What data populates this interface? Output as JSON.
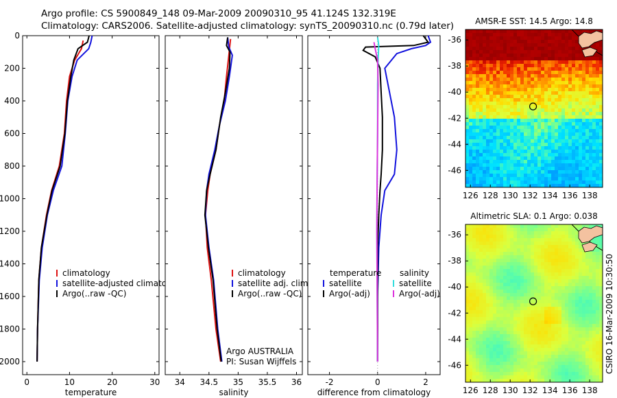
{
  "header": {
    "title_line1": "Argo profile: CS 5900849_148 09-Mar-2009 20090310_95 41.124S 132.319E",
    "title_line2": "Climatology: CARS2006. Satellite-adjusted climatology: synTS_20090310.nc (0.79d later)"
  },
  "side_label": "CSIRO 16-Mar-2009 10:30:50",
  "colors": {
    "climatology": "#dd1111",
    "satellite": "#1111dd",
    "argo": "#000000",
    "sat_salinity": "#33dddd",
    "argo_salinity": "#dd33dd"
  },
  "chart_data": [
    {
      "type": "line",
      "id": "temperature",
      "xlabel": "temperature",
      "xlim": [
        -1,
        31
      ],
      "ylim": [
        2080,
        0
      ],
      "xticks": [
        0,
        10,
        20,
        30
      ],
      "yticks": [
        0,
        200,
        400,
        600,
        800,
        1000,
        1200,
        1400,
        1600,
        1800,
        2000
      ],
      "legend": [
        "climatology",
        "satellite-adjusted climatology",
        "Argo(..raw -QC)"
      ],
      "series": [
        {
          "name": "climatology",
          "color": "#dd1111",
          "points": [
            [
              13.2,
              30
            ],
            [
              12.8,
              80
            ],
            [
              11.2,
              150
            ],
            [
              10.0,
              250
            ],
            [
              9.3,
              400
            ],
            [
              8.8,
              600
            ],
            [
              7.6,
              800
            ],
            [
              5.8,
              950
            ],
            [
              4.6,
              1100
            ],
            [
              3.4,
              1300
            ],
            [
              2.8,
              1500
            ],
            [
              2.5,
              1800
            ],
            [
              2.4,
              2000
            ]
          ]
        },
        {
          "name": "satellite-adjusted climatology",
          "color": "#1111dd",
          "points": [
            [
              15.3,
              0
            ],
            [
              15.0,
              40
            ],
            [
              14.5,
              80
            ],
            [
              11.8,
              150
            ],
            [
              10.6,
              250
            ],
            [
              9.6,
              400
            ],
            [
              9.0,
              600
            ],
            [
              8.2,
              800
            ],
            [
              6.2,
              950
            ],
            [
              4.8,
              1100
            ],
            [
              3.6,
              1300
            ],
            [
              2.9,
              1500
            ],
            [
              2.5,
              1800
            ],
            [
              2.4,
              2000
            ]
          ]
        },
        {
          "name": "Argo(..raw -QC)",
          "color": "#000000",
          "points": [
            [
              14.6,
              0
            ],
            [
              14.2,
              40
            ],
            [
              12.0,
              80
            ],
            [
              11.0,
              150
            ],
            [
              10.3,
              250
            ],
            [
              9.5,
              400
            ],
            [
              8.9,
              600
            ],
            [
              7.8,
              800
            ],
            [
              5.9,
              950
            ],
            [
              4.7,
              1100
            ],
            [
              3.4,
              1300
            ],
            [
              2.8,
              1500
            ],
            [
              2.5,
              1800
            ],
            [
              2.4,
              2000
            ]
          ]
        }
      ]
    },
    {
      "type": "line",
      "id": "salinity",
      "xlabel": "salinity",
      "xlim": [
        33.75,
        36.1
      ],
      "ylim": [
        2080,
        0
      ],
      "xticks": [
        34,
        34.5,
        35,
        35.5,
        36
      ],
      "yticks": [
        0,
        200,
        400,
        600,
        800,
        1000,
        1200,
        1400,
        1600,
        1800,
        2000
      ],
      "legend": [
        "climatology",
        "satellite adj. clim.",
        "Argo(..raw -QC)"
      ],
      "annotation": [
        "Argo AUSTRALIA",
        "PI: Susan Wijffels"
      ],
      "series": [
        {
          "name": "climatology",
          "color": "#dd1111",
          "points": [
            [
              34.87,
              20
            ],
            [
              34.84,
              120
            ],
            [
              34.8,
              250
            ],
            [
              34.76,
              400
            ],
            [
              34.68,
              550
            ],
            [
              34.62,
              700
            ],
            [
              34.52,
              850
            ],
            [
              34.48,
              950
            ],
            [
              34.44,
              1100
            ],
            [
              34.47,
              1300
            ],
            [
              34.54,
              1500
            ],
            [
              34.62,
              1800
            ],
            [
              34.7,
              2000
            ]
          ]
        },
        {
          "name": "satellite adj. clim.",
          "color": "#1111dd",
          "points": [
            [
              34.82,
              10
            ],
            [
              34.84,
              70
            ],
            [
              34.9,
              120
            ],
            [
              34.85,
              250
            ],
            [
              34.78,
              400
            ],
            [
              34.68,
              550
            ],
            [
              34.6,
              700
            ],
            [
              34.5,
              850
            ],
            [
              34.46,
              950
            ],
            [
              34.44,
              1100
            ],
            [
              34.5,
              1300
            ],
            [
              34.58,
              1500
            ],
            [
              34.65,
              1800
            ],
            [
              34.72,
              2000
            ]
          ]
        },
        {
          "name": "Argo(..raw -QC)",
          "color": "#000000",
          "points": [
            [
              34.82,
              10
            ],
            [
              34.8,
              60
            ],
            [
              34.86,
              100
            ],
            [
              34.85,
              200
            ],
            [
              34.78,
              350
            ],
            [
              34.7,
              500
            ],
            [
              34.62,
              700
            ],
            [
              34.52,
              850
            ],
            [
              34.46,
              950
            ],
            [
              34.43,
              1100
            ],
            [
              34.49,
              1300
            ],
            [
              34.57,
              1500
            ],
            [
              34.64,
              1800
            ],
            [
              34.71,
              2000
            ]
          ]
        }
      ]
    },
    {
      "type": "line",
      "id": "difference",
      "xlabel": "difference from climatology",
      "xlim": [
        -2.9,
        2.6
      ],
      "ylim": [
        2080,
        0
      ],
      "xticks": [
        -2,
        0,
        2
      ],
      "yticks": [
        0,
        200,
        400,
        600,
        800,
        1000,
        1200,
        1400,
        1600,
        1800,
        2000
      ],
      "legend_titles": [
        "temperature",
        "salinity"
      ],
      "legend": [
        "satellite",
        "Argo(-adj)",
        "satellite",
        "Argo(-adj)"
      ],
      "series": [
        {
          "name": "temperature satellite",
          "color": "#1111dd",
          "points": [
            [
              2.1,
              0
            ],
            [
              2.2,
              40
            ],
            [
              2.0,
              60
            ],
            [
              1.4,
              80
            ],
            [
              0.8,
              110
            ],
            [
              0.3,
              200
            ],
            [
              0.5,
              350
            ],
            [
              0.7,
              500
            ],
            [
              0.8,
              700
            ],
            [
              0.7,
              850
            ],
            [
              0.3,
              950
            ],
            [
              0.15,
              1100
            ],
            [
              0.05,
              1300
            ],
            [
              0.0,
              1600
            ],
            [
              0.0,
              2000
            ]
          ]
        },
        {
          "name": "temperature Argo(-adj)",
          "color": "#000000",
          "points": [
            [
              1.9,
              0
            ],
            [
              2.1,
              40
            ],
            [
              1.5,
              60
            ],
            [
              -0.5,
              70
            ],
            [
              -0.6,
              90
            ],
            [
              -0.1,
              130
            ],
            [
              0.1,
              200
            ],
            [
              0.15,
              350
            ],
            [
              0.2,
              500
            ],
            [
              0.2,
              700
            ],
            [
              0.15,
              850
            ],
            [
              0.1,
              950
            ],
            [
              0.05,
              1100
            ],
            [
              0.0,
              1300
            ],
            [
              0.0,
              1600
            ],
            [
              0.0,
              2000
            ]
          ]
        },
        {
          "name": "salinity satellite",
          "color": "#33dddd",
          "points": [
            [
              0.0,
              10
            ],
            [
              0.05,
              60
            ],
            [
              0.02,
              150
            ],
            [
              0.0,
              300
            ],
            [
              0.0,
              600
            ],
            [
              -0.02,
              900
            ],
            [
              -0.03,
              1200
            ],
            [
              -0.02,
              1500
            ],
            [
              0.0,
              2000
            ]
          ]
        },
        {
          "name": "salinity Argo(-adj)",
          "color": "#dd33dd",
          "points": [
            [
              -0.15,
              40
            ],
            [
              -0.1,
              80
            ],
            [
              0.0,
              150
            ],
            [
              0.02,
              300
            ],
            [
              0.0,
              600
            ],
            [
              -0.02,
              900
            ],
            [
              -0.03,
              1200
            ],
            [
              -0.02,
              1500
            ],
            [
              0.0,
              2000
            ]
          ]
        }
      ]
    },
    {
      "type": "heatmap",
      "id": "sst-map",
      "title": "AMSR-E SST: 14.5 Argo: 14.8",
      "xlim": [
        125.5,
        139.3
      ],
      "ylim": [
        -47.3,
        -35.2
      ],
      "xticks": [
        126,
        128,
        130,
        132,
        134,
        136,
        138
      ],
      "yticks": [
        -36,
        -38,
        -40,
        -42,
        -44,
        -46
      ],
      "marker": [
        132.3,
        -41.1
      ]
    },
    {
      "type": "heatmap",
      "id": "sla-map",
      "title": "Altimetric SLA: 0.1 Argo: 0.038",
      "xlim": [
        125.5,
        139.3
      ],
      "ylim": [
        -47.3,
        -35.2
      ],
      "xticks": [
        126,
        128,
        130,
        132,
        134,
        136,
        138
      ],
      "yticks": [
        -36,
        -38,
        -40,
        -42,
        -44,
        -46
      ],
      "marker": [
        132.3,
        -41.1
      ]
    }
  ]
}
